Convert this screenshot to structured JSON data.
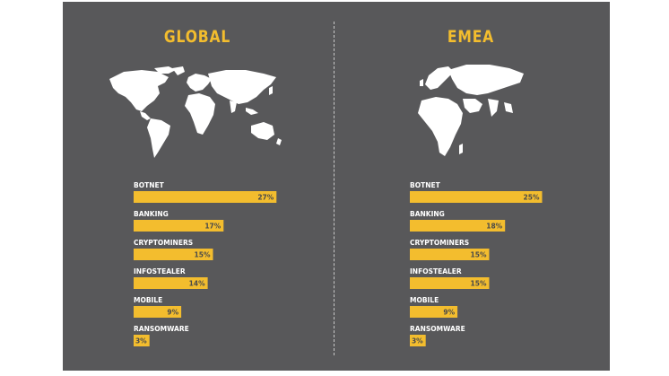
{
  "colors": {
    "background": "#58585a",
    "bar": "#f3bd2e",
    "title": "#f3bd2e",
    "label": "#ffffff",
    "value_label": "#4a4a4a"
  },
  "maps": {
    "left": "world-map",
    "right": "emea-map"
  },
  "chart_data": [
    {
      "type": "bar",
      "orientation": "horizontal",
      "title": "GLOBAL",
      "categories": [
        "BOTNET",
        "BANKING",
        "CRYPTOMINERS",
        "INFOSTEALER",
        "MOBILE",
        "RANSOMWARE"
      ],
      "values": [
        27,
        17,
        15,
        14,
        9,
        3
      ],
      "value_labels": [
        "27%",
        "17%",
        "15%",
        "14%",
        "9%",
        "3%"
      ],
      "unit": "%"
    },
    {
      "type": "bar",
      "orientation": "horizontal",
      "title": "EMEA",
      "categories": [
        "BOTNET",
        "BANKING",
        "CRYPTOMINERS",
        "INFOSTEALER",
        "MOBILE",
        "RANSOMWARE"
      ],
      "values": [
        25,
        18,
        15,
        15,
        9,
        3
      ],
      "value_labels": [
        "25%",
        "18%",
        "15%",
        "15%",
        "9%",
        "3%"
      ],
      "unit": "%"
    }
  ]
}
